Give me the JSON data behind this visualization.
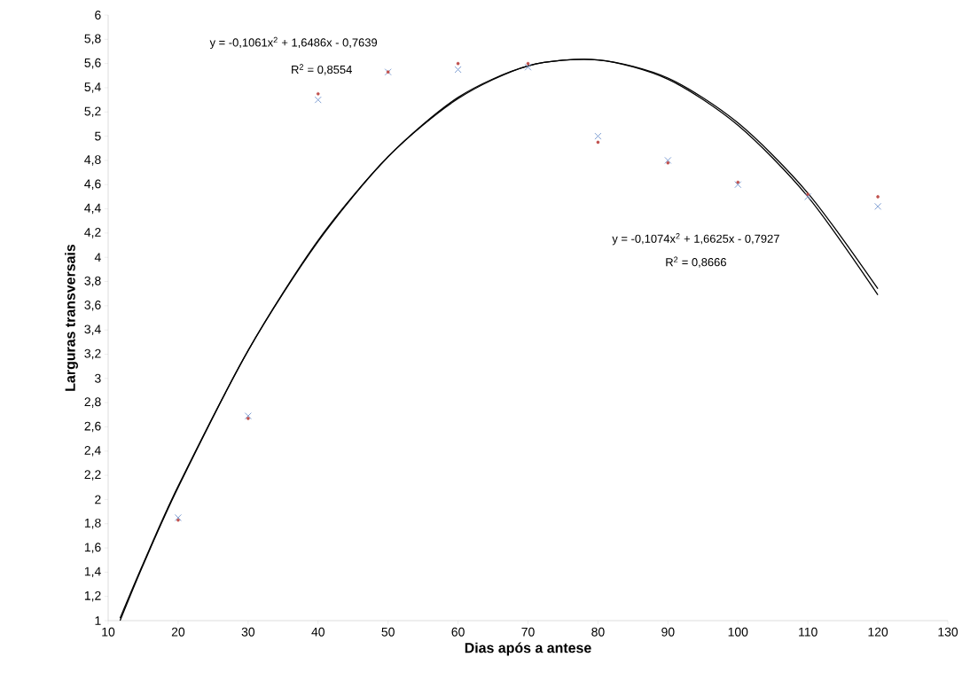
{
  "chart_data": {
    "type": "scatter",
    "xlabel": "Dias após a antese",
    "ylabel": "Larguras transversais",
    "xlim": [
      10,
      130
    ],
    "ylim": [
      1,
      6
    ],
    "xticks": [
      10,
      20,
      30,
      40,
      50,
      60,
      70,
      80,
      90,
      100,
      110,
      120,
      130
    ],
    "yticks": [
      1,
      {
        "value": 1.2,
        "label": "1,2"
      },
      {
        "value": 1.4,
        "label": "1,4"
      },
      {
        "value": 1.6,
        "label": "1,6"
      },
      {
        "value": 1.8,
        "label": "1,8"
      },
      2,
      {
        "value": 2.2,
        "label": "2,2"
      },
      {
        "value": 2.4,
        "label": "2,4"
      },
      {
        "value": 2.6,
        "label": "2,6"
      },
      {
        "value": 2.8,
        "label": "2,8"
      },
      3,
      {
        "value": 3.2,
        "label": "3,2"
      },
      {
        "value": 3.4,
        "label": "3,4"
      },
      {
        "value": 3.6,
        "label": "3,6"
      },
      {
        "value": 3.8,
        "label": "3,8"
      },
      4,
      {
        "value": 4.2,
        "label": "4,2"
      },
      {
        "value": 4.4,
        "label": "4,4"
      },
      {
        "value": 4.6,
        "label": "4,6"
      },
      {
        "value": 4.8,
        "label": "4,8"
      },
      5,
      {
        "value": 5.2,
        "label": "5,2"
      },
      {
        "value": 5.4,
        "label": "5,4"
      },
      {
        "value": 5.6,
        "label": "5,6"
      },
      {
        "value": 5.8,
        "label": "5,8"
      },
      6
    ],
    "grid": false,
    "series": [
      {
        "marker": "cross",
        "color": "#7f9fd3",
        "x": [
          20,
          30,
          40,
          50,
          60,
          70,
          80,
          90,
          100,
          110,
          120
        ],
        "values": [
          1.85,
          2.69,
          5.3,
          5.53,
          5.55,
          5.57,
          5.0,
          4.8,
          4.6,
          4.5,
          4.42
        ]
      },
      {
        "type": "scatter",
        "marker": "circle",
        "color": "#c0504d",
        "x": [
          20,
          30,
          40,
          50,
          60,
          70,
          80,
          90,
          100,
          110,
          120
        ],
        "values": [
          1.83,
          2.67,
          5.35,
          5.53,
          5.6,
          5.6,
          4.95,
          4.78,
          4.62,
          4.52,
          4.5
        ]
      },
      {
        "type": "line",
        "marker": "none",
        "color": "#000000",
        "x": [
          11.7,
          15,
          20,
          30,
          40,
          50,
          60,
          70,
          80,
          90,
          100,
          110,
          120
        ],
        "values": [
          1.02,
          1.47,
          2.11,
          3.23,
          4.13,
          4.83,
          5.31,
          5.58,
          5.63,
          5.48,
          5.11,
          4.53,
          3.74
        ]
      },
      {
        "type": "line",
        "marker": "none",
        "color": "#000000",
        "x": [
          11.7,
          15,
          20,
          30,
          40,
          50,
          60,
          70,
          80,
          90,
          100,
          110,
          120
        ],
        "values": [
          1.0,
          1.46,
          2.1,
          3.23,
          4.14,
          4.83,
          5.32,
          5.58,
          5.63,
          5.47,
          5.09,
          4.5,
          3.69
        ]
      }
    ],
    "annotations": [
      "y = -0,1061x$^{2}$ + 1,6486x - 0,7639",
      "R$^{2}$ = 0,8554",
      "y = -0,1074x$^{2}$ + 1,6625x - 0,7927",
      "R$^{2}$ = 0,8666"
    ]
  }
}
